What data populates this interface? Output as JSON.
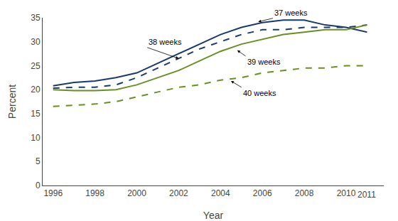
{
  "chart_data": {
    "type": "line",
    "x": [
      1996,
      1997,
      1998,
      1999,
      2000,
      2001,
      2002,
      2003,
      2004,
      2005,
      2006,
      2007,
      2008,
      2009,
      2010,
      2011
    ],
    "series": [
      {
        "color": "#1a3a6b",
        "line_style": "solid",
        "values": [
          20.8,
          21.5,
          21.8,
          22.5,
          23.5,
          25.5,
          27.5,
          29.5,
          31.5,
          33.0,
          34.0,
          34.5,
          34.5,
          33.5,
          33.0,
          32.0
        ]
      },
      {
        "color": "#1a3a6b",
        "line_style": "dash",
        "values": [
          20.3,
          20.5,
          20.5,
          21.0,
          22.5,
          24.5,
          26.5,
          28.5,
          30.0,
          31.5,
          32.5,
          32.5,
          33.0,
          33.0,
          33.0,
          33.5
        ]
      },
      {
        "color": "#6b8e23",
        "line_style": "solid",
        "values": [
          20.0,
          19.8,
          19.8,
          20.0,
          21.0,
          22.5,
          24.0,
          26.0,
          28.0,
          29.5,
          30.5,
          31.5,
          32.0,
          32.5,
          32.5,
          33.5
        ]
      },
      {
        "color": "#6b8e23",
        "line_style": "dash",
        "values": [
          16.5,
          16.8,
          17.0,
          17.5,
          18.5,
          19.5,
          20.5,
          21.0,
          22.0,
          22.5,
          23.5,
          24.0,
          24.5,
          24.5,
          25.0,
          25.0
        ]
      }
    ],
    "xlim": [
      1995.5,
      2011.8
    ],
    "ylim": [
      0,
      35
    ],
    "xticks": [
      1996,
      1998,
      2000,
      2002,
      2004,
      2006,
      2008,
      2010
    ],
    "yticks": [
      0,
      5,
      10,
      15,
      20,
      25,
      30,
      35
    ],
    "xlabel": "Year",
    "ylabel": "Percent",
    "grid": false,
    "annotations": [
      {
        "text": "2011",
        "x": 2011
      },
      {
        "text": "37 weeks",
        "xy": [
          2005.8,
          34.15
        ],
        "xytext": [
          2006.5,
          34.9
        ]
      },
      {
        "text": "38 weeks",
        "xy": [
          2002.0,
          26.5
        ],
        "xytext": [
          2000.5,
          28.8
        ]
      },
      {
        "text": "39 weeks",
        "xy": [
          2004.8,
          28.2
        ],
        "xytext": [
          2005.2,
          27.0
        ]
      },
      {
        "text": "40 weeks",
        "xy": [
          2004.5,
          21.8
        ],
        "xytext": [
          2005.0,
          20.5
        ]
      }
    ]
  }
}
